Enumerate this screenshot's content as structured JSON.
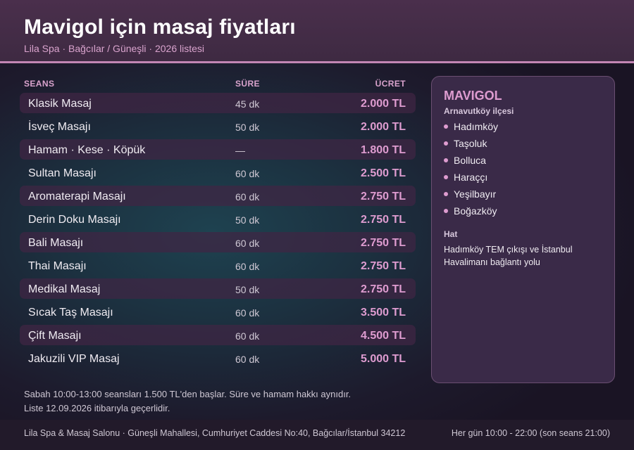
{
  "header": {
    "title": "Mavigol için masaj fiyatları",
    "subtitle": "Lila Spa · Bağcılar / Güneşli · 2026 listesi"
  },
  "table": {
    "columns": {
      "session": "SEANS",
      "duration": "SÜRE",
      "price": "ÜCRET"
    },
    "rows": [
      {
        "name": "Klasik Masaj",
        "duration": "45 dk",
        "price": "2.000 TL"
      },
      {
        "name": "İsveç Masajı",
        "duration": "50 dk",
        "price": "2.000 TL"
      },
      {
        "name": "Hamam · Kese · Köpük",
        "duration": "—",
        "price": "1.800 TL"
      },
      {
        "name": "Sultan Masajı",
        "duration": "60 dk",
        "price": "2.500 TL"
      },
      {
        "name": "Aromaterapi Masajı",
        "duration": "60 dk",
        "price": "2.750 TL"
      },
      {
        "name": "Derin Doku Masajı",
        "duration": "50 dk",
        "price": "2.750 TL"
      },
      {
        "name": "Bali Masajı",
        "duration": "60 dk",
        "price": "2.750 TL"
      },
      {
        "name": "Thai Masajı",
        "duration": "60 dk",
        "price": "2.750 TL"
      },
      {
        "name": "Medikal Masaj",
        "duration": "50 dk",
        "price": "2.750 TL"
      },
      {
        "name": "Sıcak Taş Masajı",
        "duration": "60 dk",
        "price": "3.500 TL"
      },
      {
        "name": "Çift Masajı",
        "duration": "60 dk",
        "price": "4.500 TL"
      },
      {
        "name": "Jakuzili VIP Masaj",
        "duration": "60 dk",
        "price": "5.000 TL"
      }
    ]
  },
  "notes": {
    "line1": "Sabah 10:00-13:00 seansları 1.500 TL'den başlar. Süre ve hamam hakkı aynıdır.",
    "line2": "Liste 12.09.2026 itibarıyla geçerlidir."
  },
  "panel": {
    "title": "MAVIGOL",
    "district": "Arnavutköy ilçesi",
    "neighborhoods": [
      "Hadımköy",
      "Taşoluk",
      "Bolluca",
      "Haraççı",
      "Yeşilbayır",
      "Boğazköy"
    ],
    "line_label": "Hat",
    "line_text": "Hadımköy TEM çıkışı ve İstanbul Havalimanı bağlantı yolu"
  },
  "footer": {
    "address": "Lila Spa & Masaj Salonu · Güneşli Mahallesi, Cumhuriyet Caddesi No:40, Bağcılar/İstanbul 34212",
    "hours": "Her gün 10:00 - 22:00 (son seans 21:00)"
  },
  "colors": {
    "accent": "#de9cd0",
    "header_bg": "#4a2f4c",
    "panel_bg": "#3a2a48",
    "row_shade": "#402644"
  }
}
